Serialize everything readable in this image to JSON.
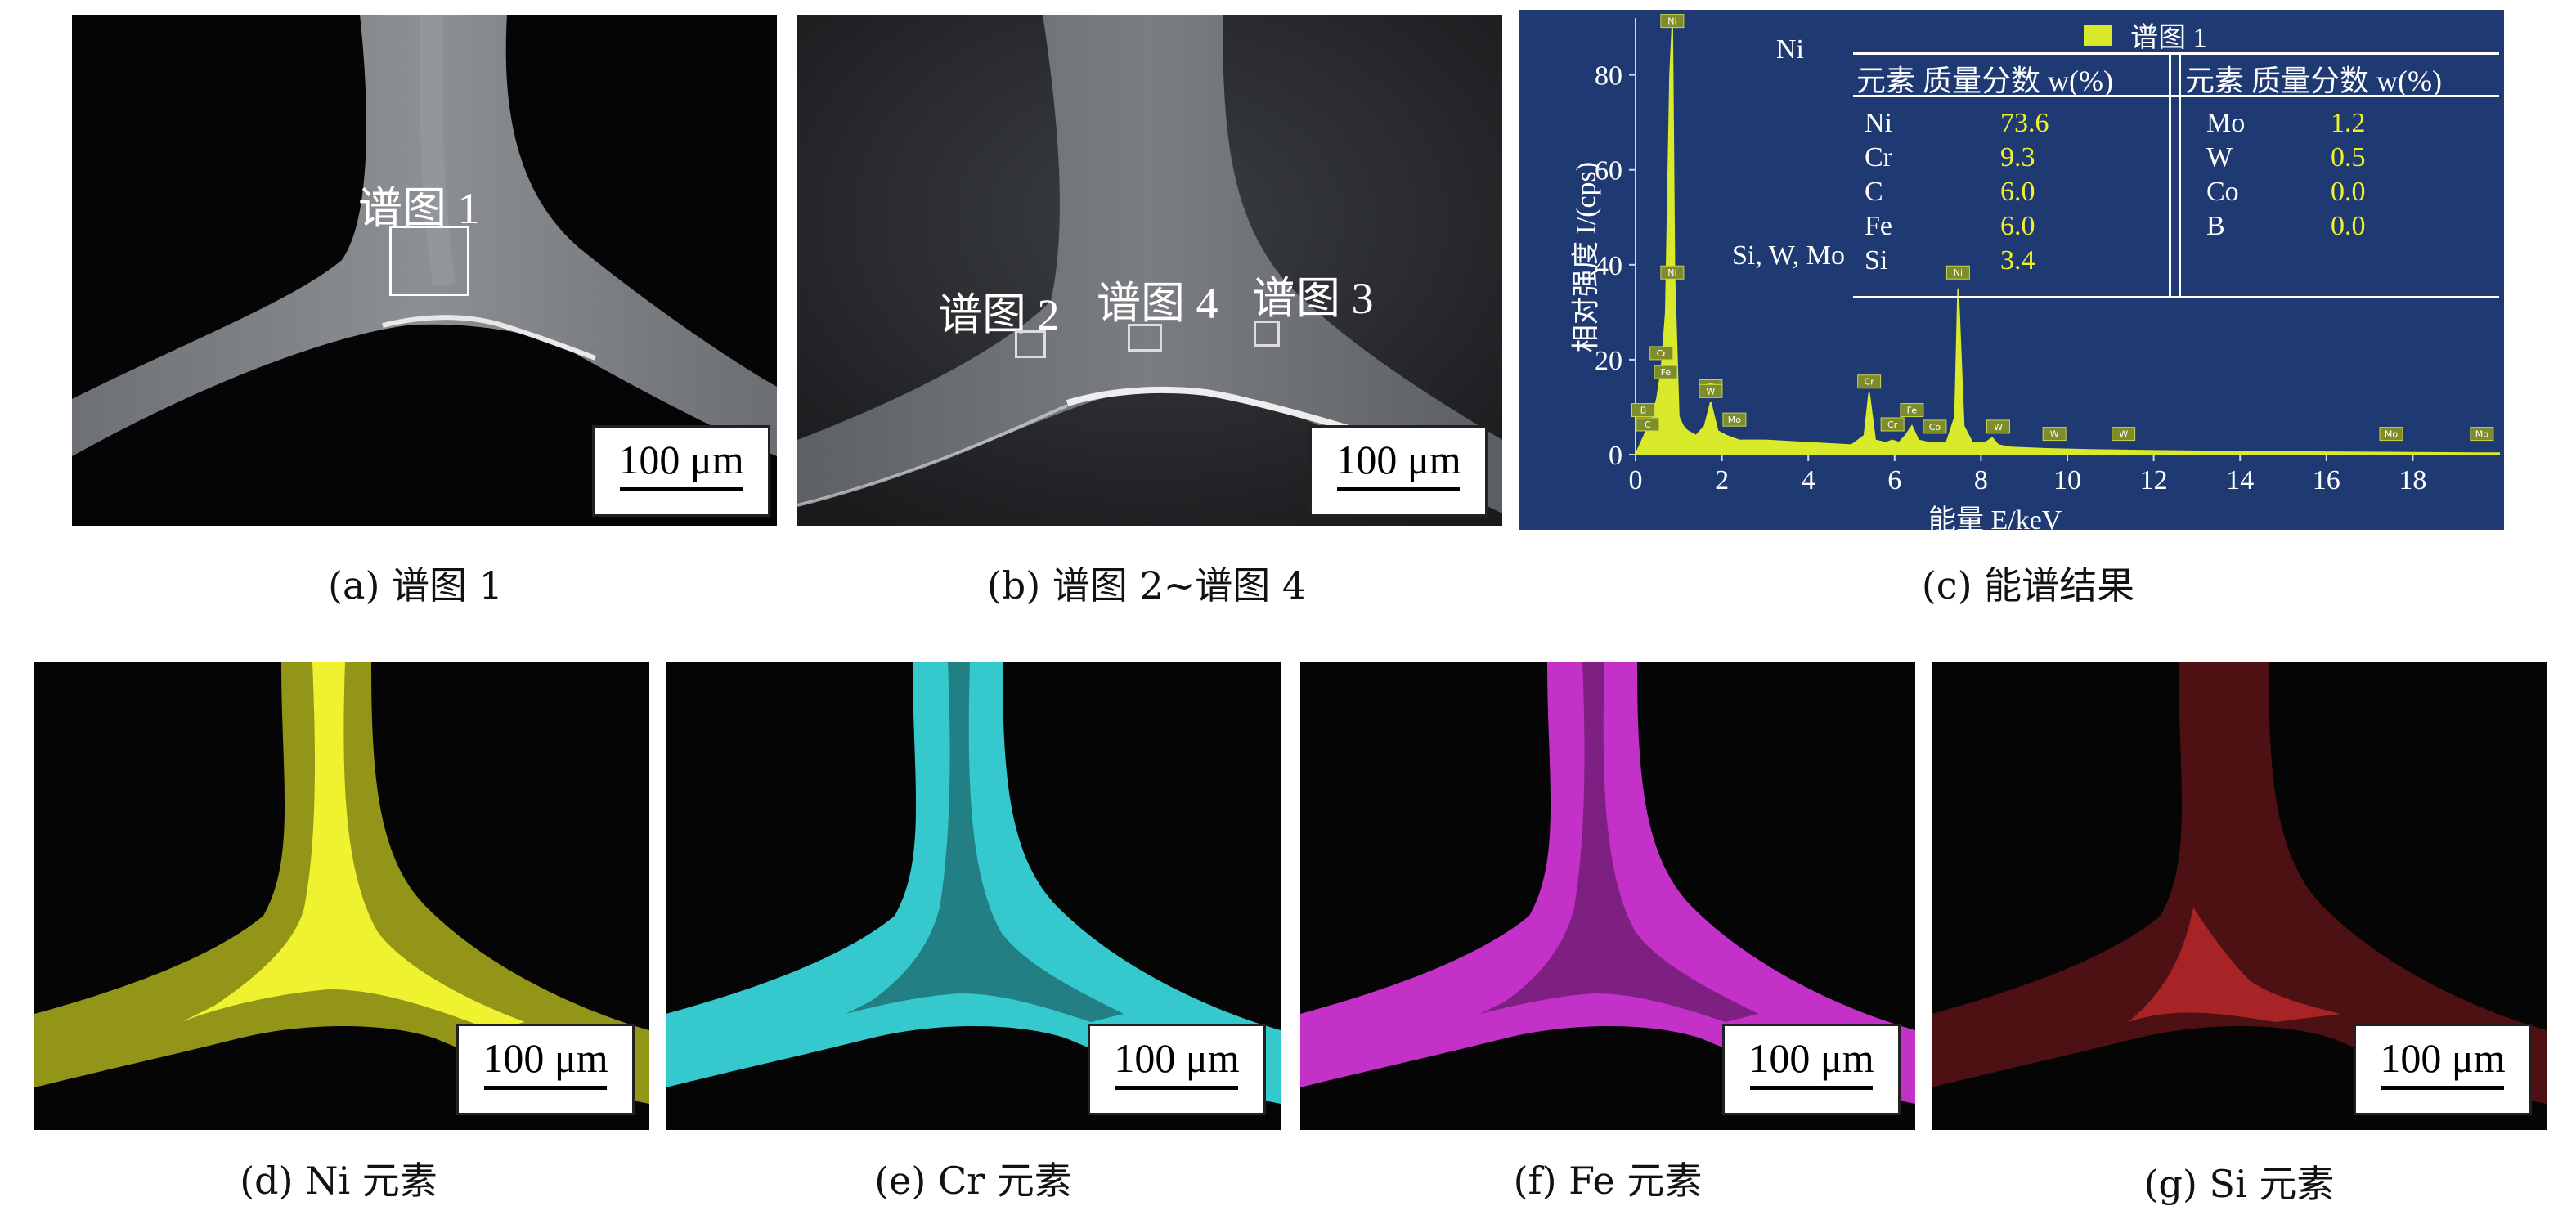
{
  "captions": {
    "a": "(a) 谱图 1",
    "b": "(b) 谱图 2~谱图 4",
    "c": "(c) 能谱结果",
    "d": "(d) Ni 元素",
    "e": "(e) Cr 元素",
    "f": "(f) Fe 元素",
    "g": "(g) Si 元素"
  },
  "scale_bar": "100 μm",
  "sem_a": {
    "region_label": "谱图 1"
  },
  "sem_b": {
    "region_labels": [
      "谱图 2",
      "谱图 4",
      "谱图 3"
    ]
  },
  "colors": {
    "ni": "#e2e629",
    "cr": "#35c8cc",
    "fe": "#c331c8",
    "si": "#c62a2d",
    "spectrum_bg": "#1f3a73",
    "spectrum_fill": "#d9ea2a",
    "table_value": "#f2f02b"
  },
  "spectrum": {
    "legend": "谱图 1",
    "ni_label": "Ni",
    "peak_group_label": "Si, W, Mo",
    "table": {
      "header_left": "元素  质量分数 w(%)",
      "header_right": "元素  质量分数 w(%)",
      "rows_left": [
        {
          "el": "Ni",
          "val": "73.6"
        },
        {
          "el": "Cr",
          "val": "9.3"
        },
        {
          "el": "C",
          "val": "6.0"
        },
        {
          "el": "Fe",
          "val": "6.0"
        },
        {
          "el": "Si",
          "val": "3.4"
        }
      ],
      "rows_right": [
        {
          "el": "Mo",
          "val": "1.2"
        },
        {
          "el": "W",
          "val": "0.5"
        },
        {
          "el": "Co",
          "val": "0.0"
        },
        {
          "el": "B",
          "val": "0.0"
        }
      ]
    },
    "peak_tags": [
      "Ni",
      "Cr",
      "Fe",
      "Si",
      "W",
      "Mo",
      "Cr",
      "Cr",
      "Fe",
      "Co",
      "Ni",
      "W",
      "W",
      "W",
      "Mo",
      "Mo",
      "C",
      "B",
      "Ni"
    ]
  },
  "chart_data": {
    "type": "area",
    "xlabel": "能量 E/keV",
    "ylabel": "相对强度 I/(cps)",
    "xlim": [
      0,
      20
    ],
    "ylim": [
      0,
      92
    ],
    "x_ticks": [
      "0",
      "2",
      "4",
      "6",
      "8",
      "10",
      "12",
      "14",
      "16",
      "18"
    ],
    "y_ticks": [
      "0",
      "20",
      "40",
      "60",
      "80"
    ],
    "series": [
      {
        "name": "谱图 1",
        "x": [
          0.0,
          0.1,
          0.2,
          0.28,
          0.4,
          0.5,
          0.6,
          0.7,
          0.8,
          0.85,
          0.9,
          1.0,
          1.1,
          1.2,
          1.4,
          1.6,
          1.74,
          1.9,
          2.1,
          2.4,
          3.0,
          4.0,
          5.0,
          5.3,
          5.41,
          5.55,
          5.8,
          5.95,
          6.1,
          6.25,
          6.4,
          6.55,
          6.8,
          7.2,
          7.4,
          7.47,
          7.6,
          7.8,
          8.1,
          8.26,
          8.4,
          8.7,
          9.5,
          10.5,
          12.0,
          14.0,
          16.0,
          18.0,
          19.5,
          20.0
        ],
        "y": [
          0,
          2,
          4,
          6,
          8,
          12,
          18,
          30,
          80,
          90,
          38,
          8,
          6,
          5,
          4,
          6,
          11,
          5,
          4,
          3,
          3,
          2.5,
          2,
          4,
          13,
          3,
          2.5,
          3,
          2.5,
          4,
          6,
          3,
          2.5,
          2.5,
          8,
          35,
          6,
          2.5,
          2.5,
          3.5,
          2,
          1.5,
          1.2,
          1,
          0.8,
          0.6,
          0.5,
          0.4,
          0.3,
          0.3
        ]
      }
    ]
  }
}
